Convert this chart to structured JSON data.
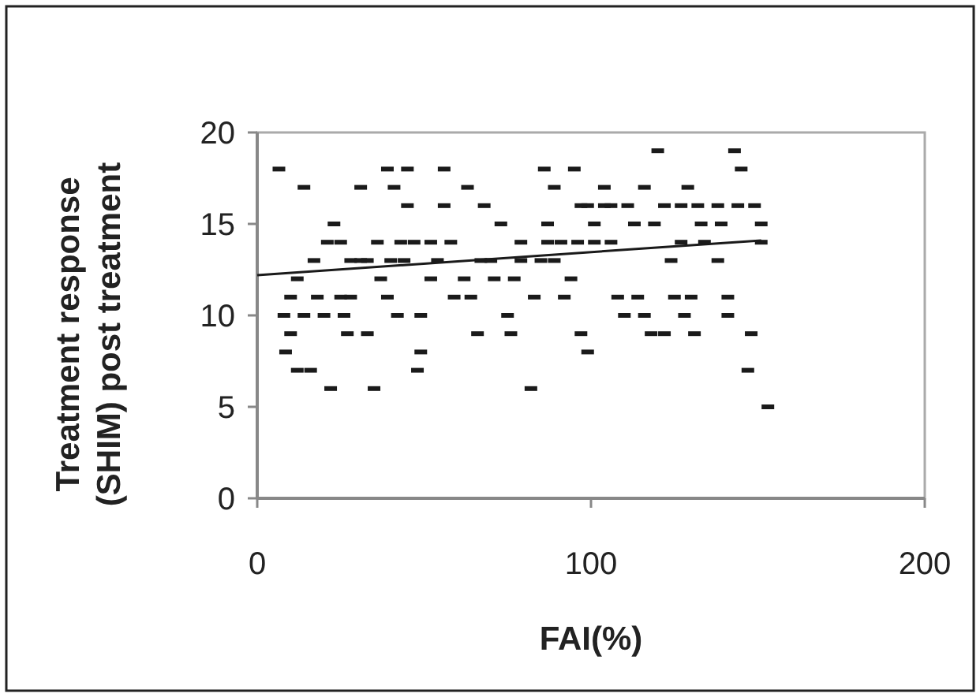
{
  "chart_data": {
    "type": "scatter",
    "xlabel": "FAI(%)",
    "ylabel": "Treatment response (SHIM) post treatment",
    "xlim": [
      0,
      200
    ],
    "ylim": [
      0,
      20
    ],
    "xticks": [
      0,
      100,
      200
    ],
    "yticks": [
      0,
      5,
      10,
      15,
      20
    ],
    "grid": false,
    "series": [
      {
        "color": "#1a1a1a",
        "x": [
          6.5,
          39,
          45,
          14,
          31,
          41,
          45,
          23,
          21,
          25,
          36,
          43,
          47,
          17,
          28,
          31,
          33,
          40,
          44,
          12,
          37,
          10,
          18,
          25,
          28,
          39,
          8,
          14,
          20,
          26,
          42,
          49,
          10,
          27,
          33,
          8.5,
          49,
          12,
          16,
          48,
          22,
          35,
          56,
          86,
          95,
          63,
          89,
          56,
          68,
          97,
          73,
          87,
          52,
          58,
          79,
          87,
          91,
          96,
          54,
          67,
          70,
          79,
          85,
          89,
          52,
          62,
          71,
          77,
          94,
          59,
          64,
          83,
          92,
          75,
          66,
          76,
          97,
          99,
          82,
          120,
          143,
          145,
          104,
          116,
          129,
          99,
          104,
          106,
          111,
          122,
          127,
          132,
          138,
          144,
          149,
          101,
          113,
          119,
          133,
          139,
          151,
          101,
          106,
          127,
          134,
          151,
          124,
          138,
          108,
          114,
          125,
          130,
          141,
          110,
          116,
          128,
          141,
          118,
          122,
          131,
          148,
          147,
          153
        ],
        "values": [
          18,
          18,
          18,
          17,
          17,
          17,
          16,
          15,
          14,
          14,
          14,
          14,
          14,
          13,
          13,
          13,
          13,
          13,
          13,
          12,
          12,
          11,
          11,
          11,
          11,
          11,
          10,
          10,
          10,
          10,
          10,
          10,
          9,
          9,
          9,
          8,
          8,
          7,
          7,
          7,
          6,
          6,
          18,
          18,
          18,
          17,
          17,
          16,
          16,
          16,
          15,
          15,
          14,
          14,
          14,
          14,
          14,
          14,
          13,
          13,
          13,
          13,
          13,
          13,
          12,
          12,
          12,
          12,
          12,
          11,
          11,
          11,
          11,
          10,
          9,
          9,
          9,
          8,
          6,
          19,
          19,
          18,
          17,
          17,
          17,
          16,
          16,
          16,
          16,
          16,
          16,
          16,
          16,
          16,
          16,
          15,
          15,
          15,
          15,
          15,
          15,
          14,
          14,
          14,
          14,
          14,
          13,
          13,
          11,
          11,
          11,
          11,
          11,
          10,
          10,
          10,
          10,
          9,
          9,
          9,
          9,
          7,
          5
        ]
      },
      {
        "type": "line",
        "color": "#1a1a1a",
        "x": [
          0,
          151
        ],
        "values": [
          12.2,
          14.1
        ]
      }
    ]
  }
}
